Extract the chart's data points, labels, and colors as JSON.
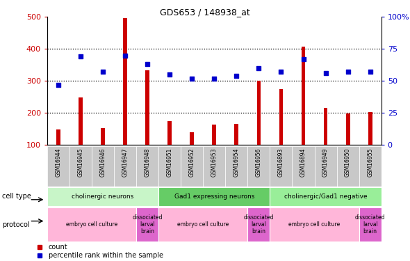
{
  "title": "GDS653 / 148938_at",
  "samples": [
    "GSM16944",
    "GSM16945",
    "GSM16946",
    "GSM16947",
    "GSM16948",
    "GSM16951",
    "GSM16952",
    "GSM16953",
    "GSM16954",
    "GSM16956",
    "GSM16893",
    "GSM16894",
    "GSM16949",
    "GSM16950",
    "GSM16955"
  ],
  "counts": [
    148,
    248,
    152,
    496,
    333,
    175,
    139,
    163,
    165,
    300,
    274,
    407,
    215,
    198,
    203
  ],
  "percentile_ranks": [
    47,
    69,
    57,
    70,
    63,
    55,
    52,
    52,
    54,
    60,
    57,
    67,
    56,
    57,
    57
  ],
  "bar_color": "#CC0000",
  "dot_color": "#0000CC",
  "ylim_left": [
    100,
    500
  ],
  "ylim_right": [
    0,
    100
  ],
  "yticks_left": [
    100,
    200,
    300,
    400,
    500
  ],
  "yticks_right": [
    0,
    25,
    50,
    75,
    100
  ],
  "cell_type_groups": [
    {
      "label": "cholinergic neurons",
      "start": 0,
      "end": 5,
      "color": "#c8f5c8"
    },
    {
      "label": "Gad1 expressing neurons",
      "start": 5,
      "end": 10,
      "color": "#66cc66"
    },
    {
      "label": "cholinergic/Gad1 negative",
      "start": 10,
      "end": 15,
      "color": "#99ee99"
    }
  ],
  "protocol_groups": [
    {
      "label": "embryo cell culture",
      "start": 0,
      "end": 4,
      "color": "#ffb6d9"
    },
    {
      "label": "dissociated\nlarval\nbrain",
      "start": 4,
      "end": 5,
      "color": "#dd66cc"
    },
    {
      "label": "embryo cell culture",
      "start": 5,
      "end": 9,
      "color": "#ffb6d9"
    },
    {
      "label": "dissociated\nlarval\nbrain",
      "start": 9,
      "end": 10,
      "color": "#dd66cc"
    },
    {
      "label": "embryo cell culture",
      "start": 10,
      "end": 14,
      "color": "#ffb6d9"
    },
    {
      "label": "dissociated\nlarval\nbrain",
      "start": 14,
      "end": 15,
      "color": "#dd66cc"
    }
  ],
  "legend_items": [
    {
      "label": "count",
      "color": "#CC0000"
    },
    {
      "label": "percentile rank within the sample",
      "color": "#0000CC"
    }
  ]
}
